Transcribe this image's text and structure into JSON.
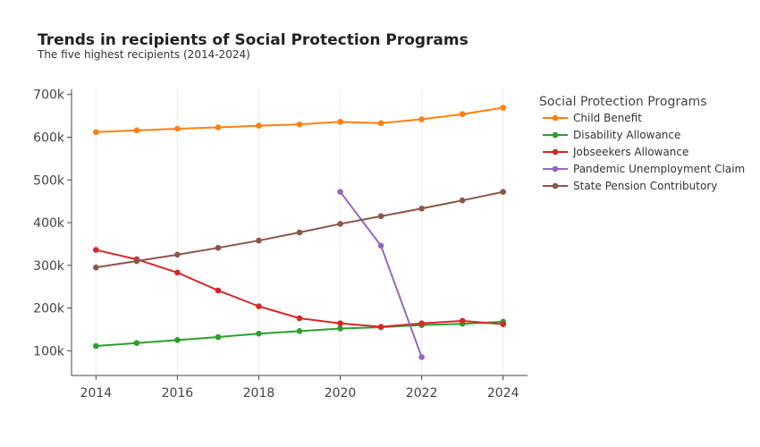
{
  "chart_data": {
    "type": "line",
    "title": "Trends in recipients of Social Protection Programs",
    "subtitle": "The five highest recipients (2014-2024)",
    "xlabel": "",
    "ylabel": "",
    "x": [
      2014,
      2015,
      2016,
      2017,
      2018,
      2019,
      2020,
      2021,
      2022,
      2023,
      2024
    ],
    "xlim": [
      2013.4,
      2024.6
    ],
    "ylim": [
      42000,
      712000
    ],
    "x_ticks": [
      2014,
      2016,
      2018,
      2020,
      2022,
      2024
    ],
    "x_tick_labels": [
      "2014",
      "2016",
      "2018",
      "2020",
      "2022",
      "2024"
    ],
    "y_ticks": [
      100000,
      200000,
      300000,
      400000,
      500000,
      600000,
      700000
    ],
    "y_tick_labels": [
      "100k",
      "200k",
      "300k",
      "400k",
      "500k",
      "600k",
      "700k"
    ],
    "grid": "vertical",
    "legend_title": "Social Protection Programs",
    "legend_position": "right",
    "series": [
      {
        "name": "Child Benefit",
        "color": "#ff7f0e",
        "values": [
          612000,
          616000,
          620000,
          623000,
          627000,
          630000,
          636000,
          633000,
          642000,
          654000,
          669000
        ]
      },
      {
        "name": "Disability Allowance",
        "color": "#2ca02c",
        "values": [
          111000,
          118000,
          125000,
          132000,
          140000,
          146000,
          152000,
          155000,
          160000,
          163000,
          168000
        ]
      },
      {
        "name": "Jobseekers Allowance",
        "color": "#d62728",
        "values": [
          336000,
          314000,
          283000,
          241000,
          204000,
          176000,
          164000,
          156000,
          164000,
          170000,
          162000
        ]
      },
      {
        "name": "Pandemic Unemployment Claim",
        "color": "#9467bd",
        "values": [
          null,
          null,
          null,
          null,
          null,
          null,
          472000,
          346000,
          85000,
          null,
          null
        ]
      },
      {
        "name": "State Pension Contributory",
        "color": "#8c564b",
        "values": [
          295000,
          310000,
          325000,
          341000,
          358000,
          377000,
          397000,
          415000,
          433000,
          452000,
          472000
        ]
      }
    ]
  }
}
